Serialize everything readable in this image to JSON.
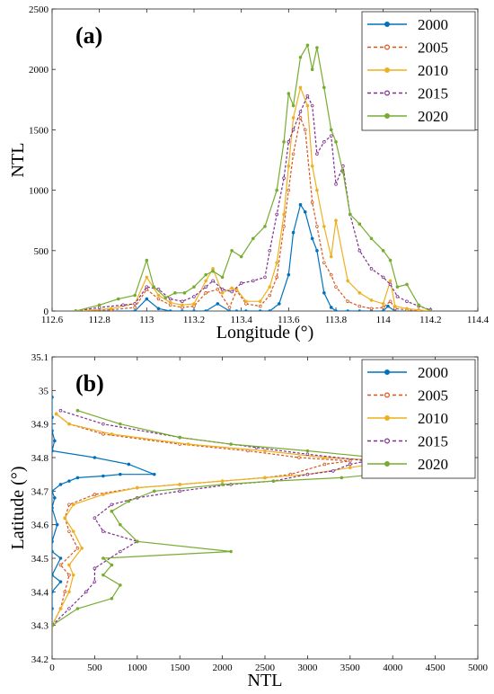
{
  "chart_data": [
    {
      "type": "line",
      "panel_label": "(a)",
      "xlabel": "Longitude (°)",
      "ylabel": "NTL",
      "xlim": [
        112.6,
        114.4
      ],
      "ylim": [
        0,
        2500
      ],
      "xticks": [
        "112.6",
        "112.8",
        "113",
        "113.2",
        "113.4",
        "113.6",
        "113.8",
        "114",
        "114.2",
        "114.4"
      ],
      "yticks": [
        "0",
        "500",
        "1000",
        "1500",
        "2000",
        "2500"
      ],
      "legend_position": "top-right",
      "series": [
        {
          "name": "2000",
          "color": "#0072BD",
          "dash": "solid",
          "marker": "filled",
          "x": [
            112.7,
            112.95,
            113.0,
            113.05,
            113.1,
            113.15,
            113.2,
            113.25,
            113.3,
            113.35,
            113.38,
            113.42,
            113.48,
            113.52,
            113.56,
            113.6,
            113.62,
            113.65,
            113.67,
            113.7,
            113.72,
            113.75,
            113.78,
            113.8,
            113.85,
            113.9,
            113.95,
            114.0,
            114.02,
            114.05,
            114.1,
            114.15,
            114.2
          ],
          "y": [
            0,
            0,
            100,
            20,
            0,
            0,
            0,
            0,
            60,
            0,
            0,
            0,
            0,
            0,
            60,
            300,
            650,
            880,
            820,
            600,
            500,
            150,
            30,
            0,
            0,
            0,
            0,
            0,
            40,
            0,
            0,
            0,
            0
          ]
        },
        {
          "name": "2005",
          "color": "#D95319",
          "dash": "dashed",
          "marker": "open",
          "x": [
            112.7,
            112.85,
            112.95,
            113.0,
            113.05,
            113.1,
            113.15,
            113.2,
            113.25,
            113.3,
            113.35,
            113.38,
            113.42,
            113.48,
            113.52,
            113.55,
            113.58,
            113.6,
            113.62,
            113.65,
            113.67,
            113.7,
            113.72,
            113.75,
            113.78,
            113.8,
            113.85,
            113.9,
            113.95,
            114.0,
            114.03,
            114.05,
            114.1,
            114.15,
            114.2
          ],
          "y": [
            0,
            10,
            30,
            180,
            100,
            50,
            30,
            40,
            150,
            180,
            30,
            170,
            60,
            40,
            130,
            280,
            700,
            1000,
            1300,
            1600,
            1500,
            900,
            700,
            400,
            300,
            200,
            80,
            40,
            20,
            30,
            80,
            20,
            10,
            0,
            0
          ]
        },
        {
          "name": "2010",
          "color": "#EDB120",
          "dash": "solid",
          "marker": "filled",
          "x": [
            112.7,
            112.85,
            112.95,
            113.0,
            113.05,
            113.1,
            113.15,
            113.2,
            113.25,
            113.28,
            113.32,
            113.36,
            113.38,
            113.42,
            113.48,
            113.52,
            113.55,
            113.58,
            113.6,
            113.62,
            113.65,
            113.68,
            113.7,
            113.72,
            113.75,
            113.78,
            113.8,
            113.85,
            113.9,
            113.95,
            114.0,
            114.03,
            114.05,
            114.1,
            114.15,
            114.2
          ],
          "y": [
            0,
            20,
            60,
            280,
            130,
            70,
            50,
            60,
            250,
            350,
            150,
            190,
            180,
            80,
            80,
            200,
            400,
            800,
            1200,
            1600,
            1850,
            1700,
            1200,
            1000,
            700,
            450,
            750,
            250,
            150,
            90,
            60,
            250,
            40,
            20,
            10,
            0
          ]
        },
        {
          "name": "2015",
          "color": "#7E2F8E",
          "dash": "dashed",
          "marker": "open",
          "x": [
            112.7,
            112.8,
            112.9,
            112.95,
            113.0,
            113.05,
            113.1,
            113.15,
            113.2,
            113.25,
            113.28,
            113.32,
            113.36,
            113.4,
            113.45,
            113.5,
            113.52,
            113.55,
            113.58,
            113.6,
            113.62,
            113.65,
            113.68,
            113.7,
            113.72,
            113.75,
            113.78,
            113.8,
            113.83,
            113.86,
            113.9,
            113.95,
            114.0,
            114.03,
            114.06,
            114.1,
            114.15,
            114.2
          ],
          "y": [
            0,
            30,
            50,
            60,
            200,
            180,
            100,
            80,
            120,
            200,
            250,
            180,
            160,
            230,
            250,
            280,
            500,
            800,
            1100,
            1400,
            1500,
            1650,
            1780,
            1700,
            1300,
            1400,
            1450,
            1050,
            1200,
            800,
            500,
            350,
            280,
            220,
            120,
            80,
            40,
            10
          ]
        },
        {
          "name": "2020",
          "color": "#77AC30",
          "dash": "solid",
          "marker": "filled",
          "x": [
            112.7,
            112.8,
            112.88,
            112.95,
            113.0,
            113.03,
            113.08,
            113.12,
            113.16,
            113.2,
            113.25,
            113.28,
            113.32,
            113.36,
            113.4,
            113.45,
            113.5,
            113.55,
            113.58,
            113.6,
            113.62,
            113.65,
            113.68,
            113.7,
            113.72,
            113.75,
            113.78,
            113.8,
            113.83,
            113.86,
            113.9,
            113.95,
            114.0,
            114.03,
            114.06,
            114.1,
            114.15,
            114.2
          ],
          "y": [
            0,
            50,
            100,
            130,
            420,
            200,
            110,
            150,
            150,
            200,
            300,
            330,
            280,
            500,
            450,
            600,
            700,
            1000,
            1400,
            1800,
            1700,
            2100,
            2200,
            2000,
            2180,
            1850,
            1500,
            1400,
            1150,
            800,
            720,
            600,
            500,
            420,
            200,
            220,
            50,
            0
          ]
        }
      ]
    },
    {
      "type": "line",
      "panel_label": "(b)",
      "xlabel": "NTL",
      "ylabel": "Latitude (°)",
      "xlim": [
        0,
        5000
      ],
      "ylim": [
        34.2,
        35.1
      ],
      "xticks": [
        "0",
        "500",
        "1000",
        "1500",
        "2000",
        "2500",
        "3000",
        "3500",
        "4000",
        "4500",
        "5000"
      ],
      "yticks": [
        "34.2",
        "34.3",
        "34.4",
        "34.5",
        "34.6",
        "34.7",
        "34.8",
        "34.9",
        "35",
        "35.1"
      ],
      "legend_position": "top-right",
      "series": [
        {
          "name": "2000",
          "color": "#0072BD",
          "dash": "solid",
          "marker": "filled",
          "x": [
            0,
            0,
            0,
            100,
            0,
            100,
            0,
            0,
            60,
            0,
            30,
            0,
            100,
            200,
            300,
            600,
            800,
            1200,
            900,
            500,
            0,
            30,
            0,
            0,
            0
          ],
          "y": [
            34.3,
            34.35,
            34.4,
            34.43,
            34.45,
            34.5,
            34.52,
            34.55,
            34.6,
            34.65,
            34.68,
            34.7,
            34.72,
            34.73,
            34.74,
            34.745,
            34.75,
            34.75,
            34.78,
            34.8,
            34.82,
            34.85,
            34.88,
            34.92,
            34.98
          ]
        },
        {
          "name": "2005",
          "color": "#D95319",
          "dash": "dashed",
          "marker": "open",
          "x": [
            0,
            100,
            150,
            200,
            100,
            300,
            200,
            150,
            200,
            500,
            1000,
            1500,
            2000,
            2500,
            2800,
            3200,
            3500,
            2900,
            2300,
            1500,
            600,
            200,
            50
          ],
          "y": [
            34.3,
            34.35,
            34.4,
            34.45,
            34.48,
            34.53,
            34.58,
            34.62,
            34.66,
            34.69,
            34.71,
            34.72,
            34.73,
            34.74,
            34.75,
            34.78,
            34.79,
            34.8,
            34.82,
            34.84,
            34.87,
            34.9,
            34.93
          ]
        },
        {
          "name": "2010",
          "color": "#EDB120",
          "dash": "solid",
          "marker": "filled",
          "x": [
            0,
            100,
            200,
            250,
            200,
            350,
            250,
            150,
            250,
            600,
            1000,
            1500,
            2000,
            2500,
            3000,
            3500,
            4000,
            3200,
            2500,
            1600,
            700,
            200,
            50
          ],
          "y": [
            34.3,
            34.35,
            34.4,
            34.45,
            34.48,
            34.53,
            34.58,
            34.62,
            34.66,
            34.69,
            34.71,
            34.72,
            34.73,
            34.74,
            34.75,
            34.77,
            34.79,
            34.8,
            34.82,
            34.84,
            34.87,
            34.9,
            34.93
          ]
        },
        {
          "name": "2015",
          "color": "#7E2F8E",
          "dash": "dashed",
          "marker": "open",
          "x": [
            0,
            200,
            400,
            500,
            500,
            800,
            1000,
            600,
            500,
            700,
            1000,
            1500,
            2100,
            2600,
            3000,
            3300,
            3500,
            3700,
            3000,
            2400,
            1500,
            600,
            100
          ],
          "y": [
            34.3,
            34.35,
            34.4,
            34.43,
            34.47,
            34.52,
            34.55,
            34.58,
            34.62,
            34.66,
            34.68,
            34.7,
            34.72,
            34.73,
            34.75,
            34.76,
            34.78,
            34.79,
            34.81,
            34.83,
            34.86,
            34.9,
            34.94
          ]
        },
        {
          "name": "2020",
          "color": "#77AC30",
          "dash": "solid",
          "marker": "filled",
          "x": [
            0,
            300,
            700,
            800,
            600,
            700,
            600,
            2100,
            1000,
            800,
            700,
            900,
            1200,
            2000,
            2600,
            3400,
            3800,
            4000,
            4300,
            4500,
            3800,
            3000,
            2100,
            1500,
            800,
            300
          ],
          "y": [
            34.3,
            34.35,
            34.38,
            34.42,
            34.45,
            34.48,
            34.5,
            34.52,
            34.55,
            34.6,
            34.64,
            34.67,
            34.7,
            34.72,
            34.73,
            34.74,
            34.75,
            34.76,
            34.77,
            34.78,
            34.8,
            34.82,
            34.84,
            34.86,
            34.9,
            34.94
          ]
        }
      ]
    }
  ]
}
